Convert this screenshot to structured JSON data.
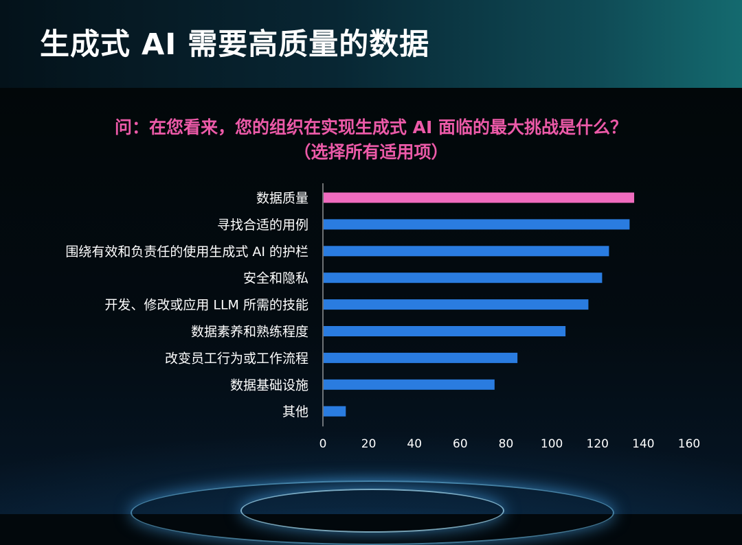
{
  "page": {
    "title": "生成式 AI 需要高质量的数据"
  },
  "question": {
    "line1": "问：在您看来，您的组织在实现生成式 AI 面临的最大挑战是什么？",
    "line2": "（选择所有适用项）"
  },
  "colors": {
    "highlight": "#f06cbf",
    "bar": "#2a7ce0",
    "question": "#ec5aa8",
    "axis_text": "#ffffff"
  },
  "chart_data": {
    "type": "bar",
    "orientation": "horizontal",
    "title": "",
    "xlabel": "",
    "ylabel": "",
    "categories": [
      "数据质量",
      "寻找合适的用例",
      "围绕有效和负责任的使用生成式 AI 的护栏",
      "安全和隐私",
      "开发、修改或应用 LLM 所需的技能",
      "数据素养和熟练程度",
      "改变员工行为或工作流程",
      "数据基础设施",
      "其他"
    ],
    "values": [
      136,
      134,
      125,
      122,
      116,
      106,
      85,
      75,
      10
    ],
    "highlight_index": 0,
    "xlim": [
      0,
      160
    ],
    "xticks": [
      "0",
      "20",
      "40",
      "60",
      "80",
      "100",
      "120",
      "140",
      "160"
    ],
    "grid": false,
    "legend": "none"
  }
}
